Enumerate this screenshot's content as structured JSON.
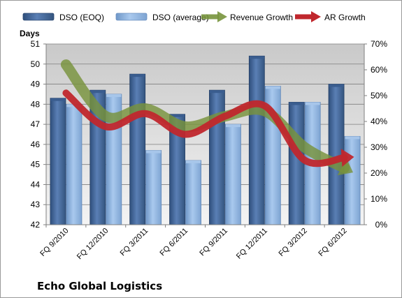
{
  "chart_data": {
    "type": "bar",
    "company": "Echo Global Logistics",
    "y_left_label": "Days",
    "y_left_ticks": [
      "42",
      "43",
      "44",
      "45",
      "46",
      "47",
      "48",
      "49",
      "50",
      "51"
    ],
    "y_right_ticks": [
      "0%",
      "10%",
      "20%",
      "30%",
      "40%",
      "50%",
      "60%",
      "70%"
    ],
    "ylim_left": [
      42,
      51
    ],
    "ylim_right": [
      0,
      70
    ],
    "grid": true,
    "legend_position": "top",
    "categories": [
      "FQ 9/2010",
      "FQ 12/2010",
      "FQ 3/2011",
      "FQ 6/2011",
      "FQ 9/2011",
      "FQ 12/2011",
      "FQ 3/2012",
      "FQ 6/2012"
    ],
    "series": [
      {
        "name": "DSO (EOQ)",
        "kind": "bar",
        "axis": "left",
        "color": "#4f6fa0",
        "values": [
          48.3,
          48.7,
          49.5,
          47.5,
          48.7,
          50.4,
          48.1,
          49.0
        ]
      },
      {
        "name": "DSO (average)",
        "kind": "bar",
        "axis": "left",
        "color": "#8db3e0",
        "values": [
          48.0,
          48.5,
          45.7,
          45.2,
          47.0,
          48.9,
          48.1,
          46.4
        ]
      },
      {
        "name": "Revenue Growth",
        "kind": "arrow-line",
        "axis": "right",
        "color": "#77933c",
        "values": [
          62,
          42,
          45,
          38,
          42,
          44,
          30,
          22
        ]
      },
      {
        "name": "AR Growth",
        "kind": "arrow-line",
        "axis": "right",
        "color": "#c0272d",
        "values": [
          51,
          38,
          43,
          35,
          42,
          46,
          25,
          26
        ]
      }
    ]
  }
}
